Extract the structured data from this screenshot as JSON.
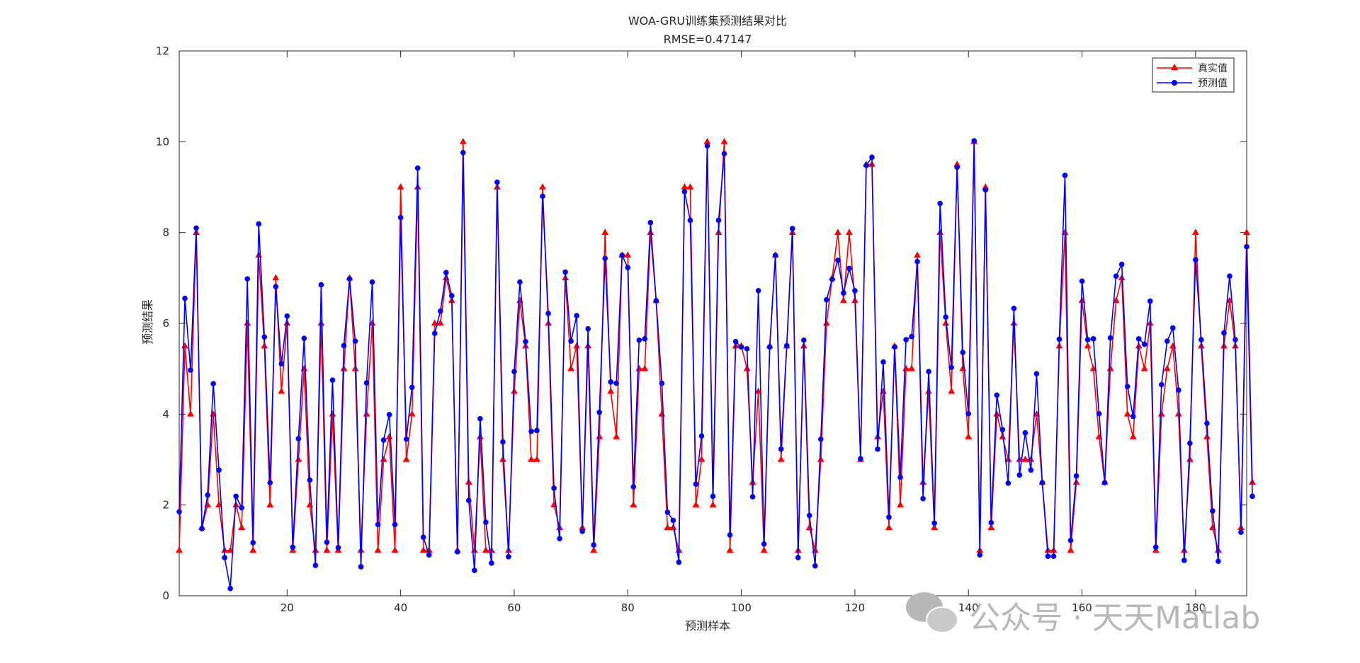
{
  "chart_data": {
    "type": "line",
    "title": "WOA-GRU训练集预测结果对比",
    "subtitle": "RMSE=0.47147",
    "xlabel": "预测样本",
    "ylabel": "预测结果",
    "xlim": [
      1,
      189
    ],
    "ylim": [
      0,
      12
    ],
    "xticks": [
      20,
      40,
      60,
      80,
      100,
      120,
      140,
      160,
      180
    ],
    "yticks": [
      0,
      2,
      4,
      6,
      8,
      10,
      12
    ],
    "legend_position": "top-right",
    "grid": false,
    "series": [
      {
        "name": "真实值",
        "color": "#ff0000",
        "marker": "triangle",
        "values": [
          1,
          5.5,
          4,
          8,
          1.5,
          2,
          4,
          2,
          1,
          1,
          2,
          1.5,
          6,
          1,
          7.5,
          5.5,
          2,
          7,
          4.5,
          6,
          1,
          3,
          5,
          2,
          1,
          6,
          1,
          4,
          1,
          5,
          7,
          5,
          1,
          4,
          6,
          1,
          3,
          3.5,
          1,
          9,
          3,
          4,
          9,
          1,
          1,
          6,
          6,
          7,
          6.5,
          1,
          10,
          2.5,
          1,
          3.5,
          1,
          1,
          9,
          3,
          1,
          4.5,
          6.5,
          5.5,
          3,
          3,
          9,
          6,
          2,
          1.5,
          7,
          5,
          5.5,
          1.5,
          5.5,
          1,
          3.5,
          8,
          4.5,
          3.5,
          7.5,
          7.5,
          2,
          5,
          5,
          8,
          6.5,
          4,
          1.5,
          1.5,
          1,
          9,
          9,
          2,
          3,
          10,
          2,
          8,
          10,
          1,
          5.5,
          5.5,
          5,
          2.5,
          4.5,
          1,
          5.5,
          7.5,
          3,
          5.5,
          8,
          1,
          5.5,
          1.5,
          1,
          3,
          6,
          7,
          8,
          6.5,
          8,
          6.5,
          3,
          9.5,
          9.5,
          3.5,
          4.5,
          1.5,
          5.5,
          2,
          5,
          5,
          7.5,
          2.5,
          4.5,
          1.5,
          8,
          6,
          4.5,
          9.5,
          5,
          3.5,
          10,
          1,
          9,
          1.5,
          4,
          3.5,
          3,
          6,
          3,
          3,
          3,
          4,
          2.5,
          1,
          1,
          5.5,
          8,
          1,
          2.5,
          6.5,
          5.5,
          5,
          3.5,
          2.5,
          5,
          6.5,
          7,
          4,
          3.5,
          5.5,
          5,
          6,
          1,
          4,
          5,
          5.5,
          4,
          1,
          3,
          8,
          5.5,
          3.5,
          1.5,
          1,
          5.5,
          6.5,
          5.5,
          1.5,
          8,
          2.5
        ]
      },
      {
        "name": "预测值",
        "color": "#0000ff",
        "marker": "circle",
        "values": [
          1.85,
          6.55,
          4.97,
          8.1,
          1.48,
          2.22,
          4.67,
          2.77,
          0.84,
          0.16,
          2.19,
          1.94,
          6.98,
          1.17,
          8.19,
          5.7,
          2.49,
          6.81,
          5.11,
          6.16,
          1.07,
          3.46,
          5.67,
          2.55,
          0.67,
          6.85,
          1.18,
          4.75,
          1.06,
          5.51,
          6.98,
          5.61,
          0.64,
          4.69,
          6.91,
          1.57,
          3.43,
          3.99,
          1.57,
          8.33,
          3.45,
          4.59,
          9.42,
          1.29,
          0.9,
          5.78,
          6.27,
          7.12,
          6.61,
          0.97,
          9.76,
          2.1,
          0.56,
          3.9,
          1.62,
          0.72,
          9.11,
          3.39,
          0.86,
          4.94,
          6.91,
          5.6,
          3.62,
          3.64,
          8.8,
          6.22,
          2.37,
          1.26,
          7.13,
          5.61,
          6.17,
          1.42,
          5.88,
          1.12,
          4.04,
          7.43,
          4.71,
          4.68,
          7.5,
          7.23,
          2.4,
          5.63,
          5.66,
          8.22,
          6.5,
          4.68,
          1.84,
          1.66,
          0.74,
          8.9,
          8.27,
          2.46,
          3.52,
          9.91,
          2.19,
          8.27,
          9.74,
          1.34,
          5.6,
          5.48,
          5.44,
          2.18,
          6.72,
          1.14,
          5.48,
          7.5,
          3.23,
          5.51,
          8.09,
          0.84,
          5.63,
          1.77,
          0.66,
          3.45,
          6.52,
          6.97,
          7.39,
          6.67,
          7.21,
          6.72,
          3.02,
          9.48,
          9.66,
          3.23,
          5.15,
          1.73,
          5.48,
          2.61,
          5.64,
          5.71,
          7.36,
          2.14,
          4.94,
          1.6,
          8.64,
          6.14,
          5.03,
          9.44,
          5.36,
          4.01,
          10.02,
          0.9,
          8.94,
          1.61,
          4.42,
          3.66,
          2.48,
          6.33,
          2.66,
          3.59,
          2.77,
          4.89,
          2.49,
          0.87,
          0.87,
          5.65,
          9.26,
          1.22,
          2.64,
          6.93,
          5.64,
          5.66,
          4.01,
          2.49,
          5.68,
          7.04,
          7.3,
          4.61,
          3.95,
          5.66,
          5.54,
          6.49,
          1.07,
          4.65,
          5.61,
          5.9,
          4.53,
          0.78,
          3.36,
          7.4,
          5.64,
          3.8,
          1.87,
          0.76,
          5.79,
          7.04,
          5.64,
          1.4,
          7.69,
          2.19
        ]
      }
    ]
  },
  "watermark": {
    "text": "公众号 · 天天Matlab",
    "icon": "wechat-icon"
  }
}
